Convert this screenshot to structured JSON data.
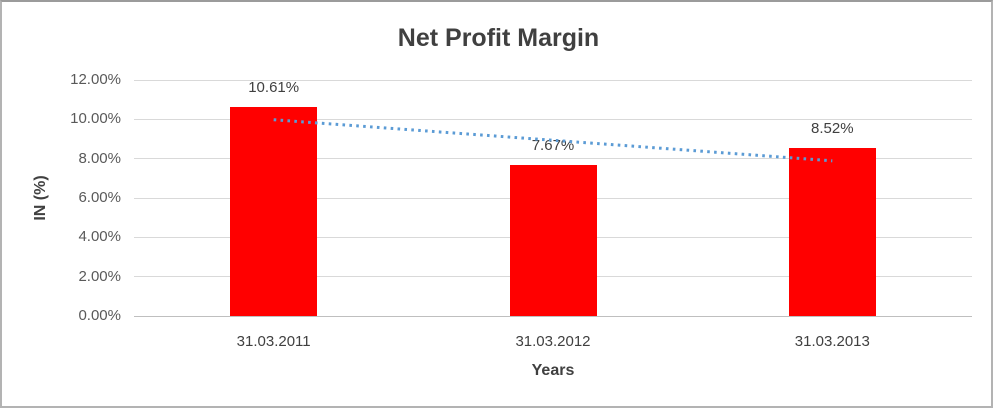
{
  "chart": {
    "title": "Net Profit Margin",
    "x_axis_title": "Years",
    "y_axis_title": "IN (%)"
  },
  "chart_data": {
    "type": "bar",
    "title": "Net Profit Margin",
    "xlabel": "Years",
    "ylabel": "IN (%)",
    "categories": [
      "31.03.2011",
      "31.03.2012",
      "31.03.2013"
    ],
    "series": [
      {
        "name": "Net Profit Margin",
        "values": [
          10.61,
          7.67,
          8.52
        ]
      }
    ],
    "data_labels": [
      "10.61%",
      "7.67%",
      "8.52%"
    ],
    "ylim": [
      0,
      12
    ],
    "ytick_step": 2,
    "ytick_labels": [
      "0.00%",
      "2.00%",
      "4.00%",
      "6.00%",
      "8.00%",
      "10.00%",
      "12.00%"
    ],
    "grid": true,
    "legend": "none",
    "bar_color": "#ff0000",
    "label_color": "#404040",
    "tick_color": "#595959",
    "gridline_color": "#d9d9d9",
    "trendline": {
      "type": "linear",
      "style": "dotted",
      "color": "#5b9bd5",
      "start_value": 9.98,
      "end_value": 7.89
    }
  }
}
